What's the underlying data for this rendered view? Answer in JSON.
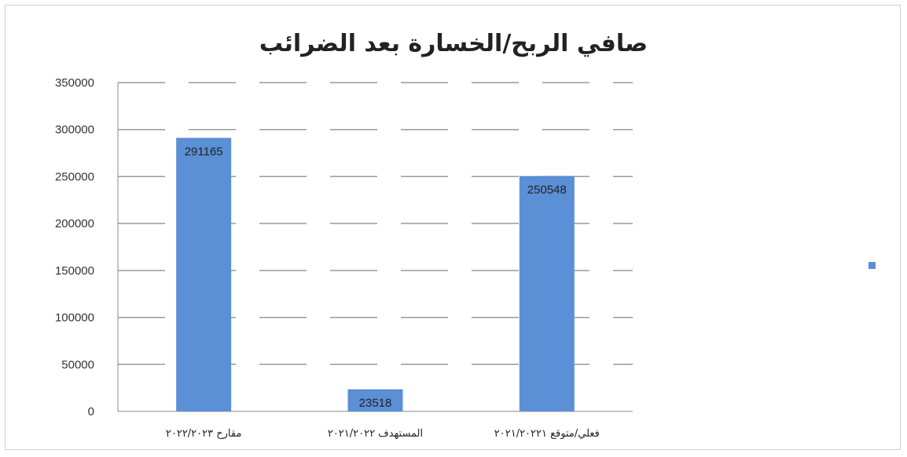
{
  "chart_data": {
    "type": "bar",
    "title": "صافي الربح/الخسارة بعد الضرائب",
    "xlabel": "",
    "ylabel": "",
    "categories": [
      "مقارح ٢٠٢٢/٢٠٢٣",
      "المستهدف ٢٠٢١/٢٠٢٢",
      "فعلي/متوقع ٢٠٢١/٢٠٢٢١"
    ],
    "series": [
      {
        "values": [
          291165,
          23518,
          250548
        ]
      }
    ],
    "data_labels": [
      "291165",
      "23518",
      "250548"
    ],
    "ylim": [
      0,
      350000
    ],
    "yticks": [
      0,
      50000,
      100000,
      150000,
      200000,
      250000,
      300000,
      350000
    ],
    "ytick_labels": [
      "0",
      "50000",
      "100000",
      "150000",
      "200000",
      "250000",
      "300000",
      "350000"
    ],
    "grid": true,
    "legend": "right",
    "colors": {
      "bar": "#5b8fd6",
      "grid": "#9a9a9a",
      "text": "#222222"
    }
  }
}
